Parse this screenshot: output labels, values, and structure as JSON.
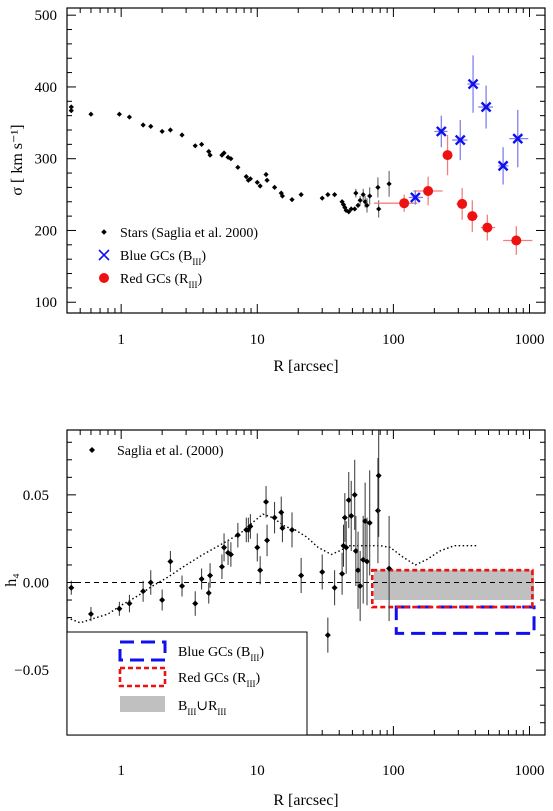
{
  "chart_data": [
    {
      "type": "scatter",
      "xlabel": "R [arcsec]",
      "ylabel": "σ  [ km s⁻¹]",
      "x_scale": "log",
      "xlim": [
        0.4,
        1300
      ],
      "ylim": [
        85,
        510
      ],
      "x_ticks": [
        1,
        10,
        100,
        1000
      ],
      "x_tick_labels": [
        "1",
        "10",
        "100",
        "1000"
      ],
      "y_ticks": [
        100,
        200,
        300,
        400,
        500
      ],
      "y_tick_labels": [
        "100",
        "200",
        "300",
        "400",
        "500"
      ],
      "legend_position": "bottom-left",
      "series": [
        {
          "name": "Stars (Saglia et al. 2000)",
          "marker": "diamond",
          "color": "#000000",
          "points": [
            [
              0.43,
              367,
              0
            ],
            [
              0.43,
              372,
              0
            ],
            [
              0.6,
              362,
              0
            ],
            [
              0.97,
              362,
              0
            ],
            [
              1.15,
              358,
              0
            ],
            [
              1.45,
              347,
              0
            ],
            [
              1.65,
              345,
              0
            ],
            [
              2.0,
              338,
              0
            ],
            [
              2.3,
              340,
              0
            ],
            [
              2.8,
              333,
              0
            ],
            [
              3.5,
              318,
              0
            ],
            [
              3.9,
              320,
              0
            ],
            [
              4.4,
              310,
              0
            ],
            [
              4.5,
              305,
              0
            ],
            [
              5.5,
              305,
              0
            ],
            [
              5.7,
              308,
              0
            ],
            [
              6.1,
              302,
              0
            ],
            [
              6.4,
              300,
              0
            ],
            [
              7.2,
              288,
              0
            ],
            [
              8.3,
              275,
              0
            ],
            [
              8.6,
              270,
              0
            ],
            [
              8.9,
              272,
              0
            ],
            [
              10.0,
              267,
              0
            ],
            [
              10.5,
              262,
              0
            ],
            [
              11.6,
              278,
              0
            ],
            [
              11.8,
              270,
              0
            ],
            [
              13.4,
              260,
              0
            ],
            [
              15.0,
              252,
              0
            ],
            [
              15.3,
              248,
              0
            ],
            [
              18.0,
              243,
              0
            ],
            [
              21.0,
              250,
              0
            ],
            [
              30.0,
              245,
              0
            ],
            [
              33.0,
              250,
              0
            ],
            [
              37.0,
              250,
              0
            ],
            [
              42.0,
              240,
              0
            ],
            [
              43.0,
              236,
              0
            ],
            [
              44.0,
              232,
              0
            ],
            [
              45.0,
              228,
              0
            ],
            [
              47.0,
              226,
              0
            ],
            [
              49.0,
              230,
              0
            ],
            [
              52.0,
              230,
              0
            ],
            [
              53.0,
              252,
              6
            ],
            [
              55.0,
              235,
              0
            ],
            [
              57.0,
              242,
              6
            ],
            [
              60.0,
              250,
              8
            ],
            [
              62.0,
              240,
              8
            ],
            [
              64.0,
              235,
              10
            ],
            [
              67.0,
              248,
              12
            ],
            [
              77.0,
              260,
              14
            ],
            [
              78.0,
              230,
              12
            ],
            [
              93.0,
              265,
              18
            ]
          ]
        },
        {
          "name": "Blue GCs (BIII)",
          "marker": "x",
          "color": "#1010ee",
          "points": [
            [
              145,
              246,
              10,
              130,
              165
            ],
            [
              225,
              338,
              22,
              200,
              250
            ],
            [
              310,
              326,
              28,
              270,
              350
            ],
            [
              385,
              404,
              40,
              350,
              430
            ],
            [
              480,
              372,
              30,
              420,
              540
            ],
            [
              640,
              290,
              26,
              590,
              700
            ],
            [
              820,
              328,
              40,
              710,
              980
            ]
          ]
        },
        {
          "name": "Red GCs (RIII)",
          "marker": "circle",
          "color": "#ee1111",
          "points": [
            [
              120,
              238,
              12,
              72,
              150
            ],
            [
              180,
              255,
              20,
              140,
              230
            ],
            [
              250,
              305,
              28,
              230,
              270
            ],
            [
              320,
              237,
              22,
              290,
              345
            ],
            [
              380,
              220,
              22,
              350,
              420
            ],
            [
              490,
              204,
              18,
              440,
              560
            ],
            [
              800,
              186,
              20,
              640,
              1050
            ]
          ]
        }
      ]
    },
    {
      "type": "scatter",
      "xlabel": "R [arcsec]",
      "ylabel": "h₄",
      "x_scale": "log",
      "xlim": [
        0.4,
        1300
      ],
      "ylim": [
        -0.087,
        0.087
      ],
      "x_ticks": [
        1,
        10,
        100,
        1000
      ],
      "x_tick_labels": [
        "1",
        "10",
        "100",
        "1000"
      ],
      "y_ticks": [
        -0.05,
        0.0,
        0.05
      ],
      "y_tick_labels": [
        "−0.05",
        "0.00",
        "0.05"
      ],
      "legend_position": "top-left and bottom-left",
      "series": [
        {
          "name": "Saglia et al. (2000)",
          "marker": "diamond",
          "color": "#000000",
          "points": [
            [
              0.43,
              -0.003,
              0.004
            ],
            [
              0.6,
              -0.018,
              0.004
            ],
            [
              0.97,
              -0.015,
              0.004
            ],
            [
              1.15,
              -0.012,
              0.005
            ],
            [
              1.45,
              -0.005,
              0.006
            ],
            [
              1.65,
              0.0,
              0.007
            ],
            [
              2.0,
              -0.01,
              0.006
            ],
            [
              2.3,
              0.012,
              0.006
            ],
            [
              2.8,
              -0.002,
              0.006
            ],
            [
              3.5,
              -0.012,
              0.007
            ],
            [
              3.9,
              0.002,
              0.006
            ],
            [
              4.4,
              -0.006,
              0.006
            ],
            [
              4.5,
              0.004,
              0.007
            ],
            [
              5.5,
              0.009,
              0.007
            ],
            [
              5.7,
              0.02,
              0.008
            ],
            [
              6.1,
              0.017,
              0.007
            ],
            [
              6.4,
              0.016,
              0.007
            ],
            [
              7.2,
              0.027,
              0.007
            ],
            [
              8.3,
              0.03,
              0.007
            ],
            [
              8.6,
              0.03,
              0.007
            ],
            [
              8.9,
              0.032,
              0.007
            ],
            [
              10.0,
              0.02,
              0.008
            ],
            [
              10.5,
              0.007,
              0.008
            ],
            [
              11.6,
              0.046,
              0.009
            ],
            [
              11.8,
              0.024,
              0.009
            ],
            [
              13.4,
              0.037,
              0.009
            ],
            [
              15.0,
              0.04,
              0.009
            ],
            [
              15.3,
              0.031,
              0.008
            ],
            [
              18.0,
              0.03,
              0.01
            ],
            [
              21.0,
              0.004,
              0.01
            ],
            [
              30.0,
              0.006,
              0.01
            ],
            [
              33.0,
              -0.03,
              0.01
            ],
            [
              37.0,
              -0.003,
              0.01
            ],
            [
              42.0,
              0.005,
              0.012
            ],
            [
              43.0,
              0.021,
              0.012
            ],
            [
              44.0,
              0.037,
              0.014
            ],
            [
              45.0,
              0.02,
              0.015
            ],
            [
              47.0,
              0.047,
              0.016
            ],
            [
              49.0,
              0.038,
              0.02
            ],
            [
              52.0,
              0.05,
              0.02
            ],
            [
              53.0,
              0.018,
              0.02
            ],
            [
              55.0,
              0.007,
              0.022
            ],
            [
              57.0,
              -0.002,
              0.02
            ],
            [
              60.0,
              0.013,
              0.025
            ],
            [
              62.0,
              0.035,
              0.022
            ],
            [
              64.0,
              0.012,
              0.025
            ],
            [
              67.0,
              0.034,
              0.03
            ],
            [
              77.0,
              0.041,
              0.03
            ],
            [
              78.0,
              0.061,
              0.035
            ],
            [
              93.0,
              0.008,
              0.03
            ]
          ]
        },
        {
          "name": "model curve",
          "style": "dotted",
          "color": "#000000",
          "points": [
            [
              0.4,
              -0.02
            ],
            [
              0.5,
              -0.023
            ],
            [
              0.6,
              -0.021
            ],
            [
              0.8,
              -0.018
            ],
            [
              1.0,
              -0.013
            ],
            [
              1.3,
              -0.008
            ],
            [
              1.7,
              -0.002
            ],
            [
              2.2,
              0.003
            ],
            [
              3.0,
              0.01
            ],
            [
              4.0,
              0.016
            ],
            [
              5.5,
              0.022
            ],
            [
              7.5,
              0.028
            ],
            [
              9.5,
              0.035
            ],
            [
              11.0,
              0.039
            ],
            [
              13.0,
              0.037
            ],
            [
              16.0,
              0.032
            ],
            [
              19.0,
              0.03
            ],
            [
              23.0,
              0.026
            ],
            [
              28.0,
              0.02
            ],
            [
              35.0,
              0.016
            ],
            [
              40.0,
              0.018
            ],
            [
              48.0,
              0.021
            ],
            [
              60.0,
              0.021
            ],
            [
              80.0,
              0.021
            ],
            [
              95.0,
              0.02
            ],
            [
              115.0,
              0.015
            ],
            [
              145.0,
              0.01
            ],
            [
              175.0,
              0.013
            ],
            [
              220.0,
              0.018
            ],
            [
              280.0,
              0.021
            ],
            [
              350.0,
              0.021
            ],
            [
              410.0,
              0.021
            ]
          ]
        },
        {
          "name": "Blue GCs (BIII)",
          "style": "dashed box",
          "color": "#1010ee",
          "box": {
            "x": [
              105,
              1080
            ],
            "y": [
              -0.029,
              -0.014
            ]
          }
        },
        {
          "name": "Red GCs (RIII)",
          "style": "dotted box",
          "color": "#ee1111",
          "box": {
            "x": [
              70,
              1050
            ],
            "y": [
              -0.014,
              0.007
            ]
          }
        },
        {
          "name": "BIII∪RIII",
          "style": "filled box",
          "color": "#c0c0c0",
          "box": {
            "x": [
              72,
              1080
            ],
            "y": [
              -0.01,
              0.007
            ]
          }
        }
      ],
      "reference_line": {
        "y": 0.0,
        "style": "dashed"
      }
    }
  ]
}
